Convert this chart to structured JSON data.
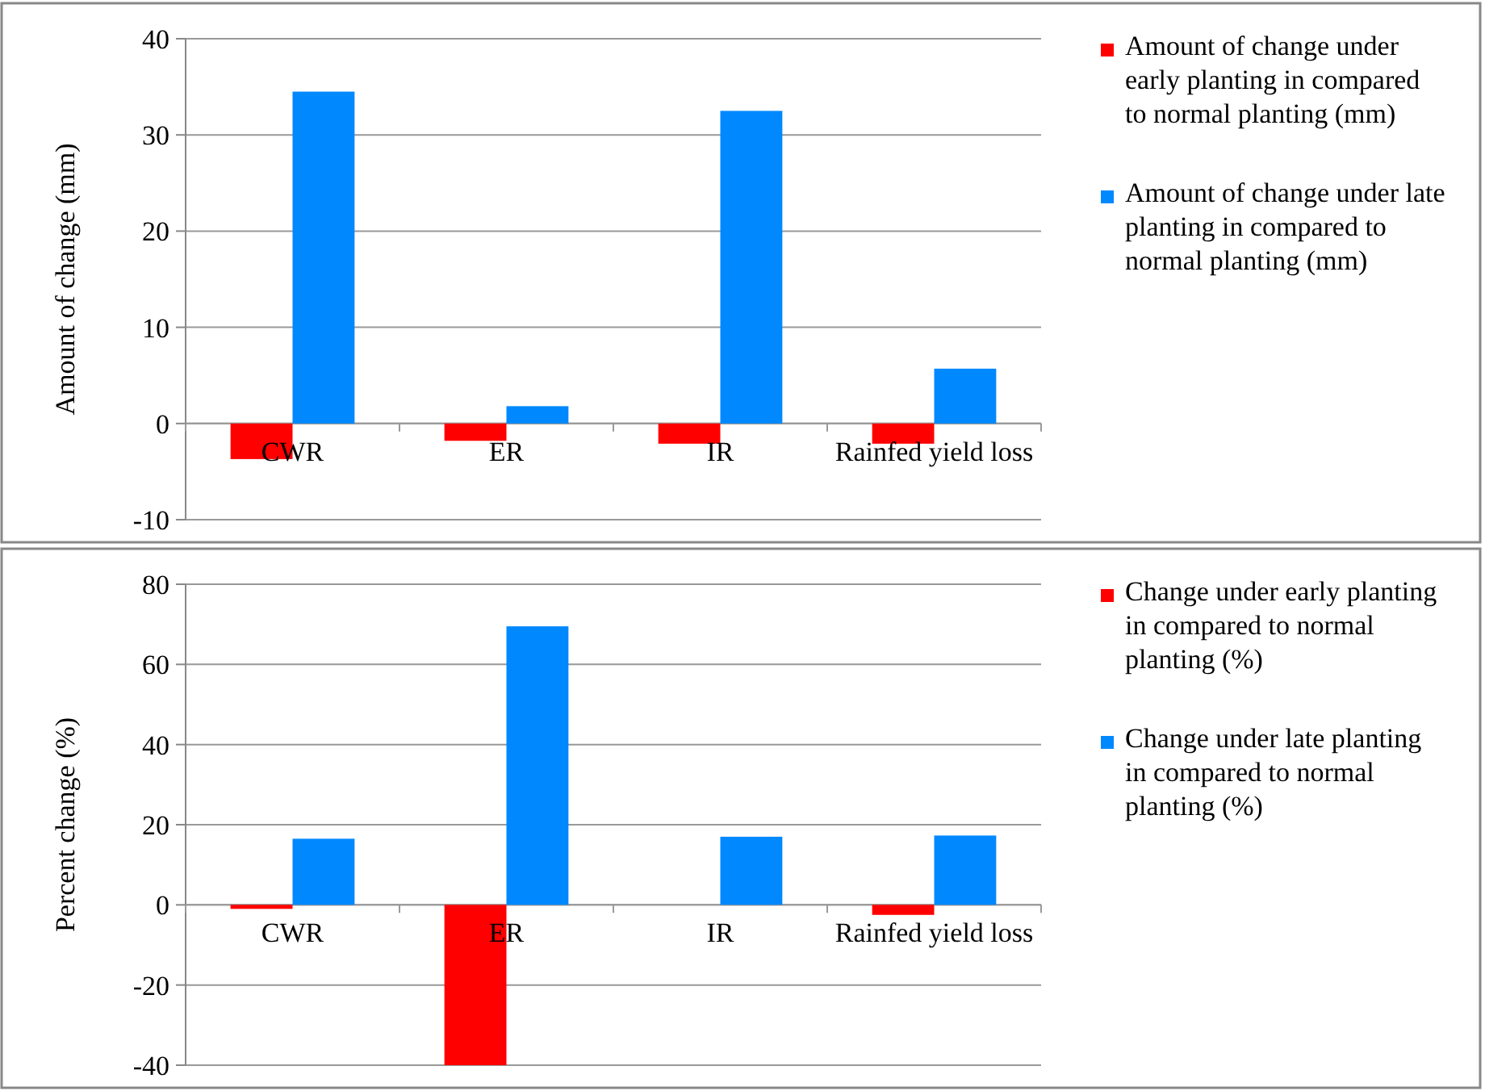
{
  "chart_data": [
    {
      "type": "bar",
      "ylabel": "Amount of change (mm)",
      "categories": [
        "CWR",
        "ER",
        "IR",
        "Rainfed yield loss"
      ],
      "series": [
        {
          "name": "Amount of change under early planting in compared to normal planting (mm)",
          "color": "#ff0000",
          "values": [
            -3.7,
            -1.8,
            -2.1,
            -2.1
          ]
        },
        {
          "name": "Amount of change under late planting in compared to normal planting (mm)",
          "color": "#0088ff",
          "values": [
            34.5,
            1.8,
            32.5,
            5.7
          ]
        }
      ],
      "ylim": [
        -10,
        40
      ],
      "yticks": [
        -10,
        0,
        10,
        20,
        30,
        40
      ],
      "grid": "y",
      "legend": "right"
    },
    {
      "type": "bar",
      "ylabel": "Percent change (%)",
      "categories": [
        "CWR",
        "ER",
        "IR",
        "Rainfed yield loss"
      ],
      "series": [
        {
          "name": "Change under early planting in compared to normal planting (%)",
          "color": "#ff0000",
          "values": [
            -1,
            -40,
            0,
            -2.5
          ]
        },
        {
          "name": "Change under late planting in compared to normal planting (%)",
          "color": "#0088ff",
          "values": [
            16.5,
            69.5,
            17,
            17.3
          ]
        }
      ],
      "ylim": [
        -40,
        80
      ],
      "yticks": [
        -40,
        -20,
        0,
        20,
        40,
        60,
        80
      ],
      "grid": "y",
      "legend": "right"
    }
  ]
}
